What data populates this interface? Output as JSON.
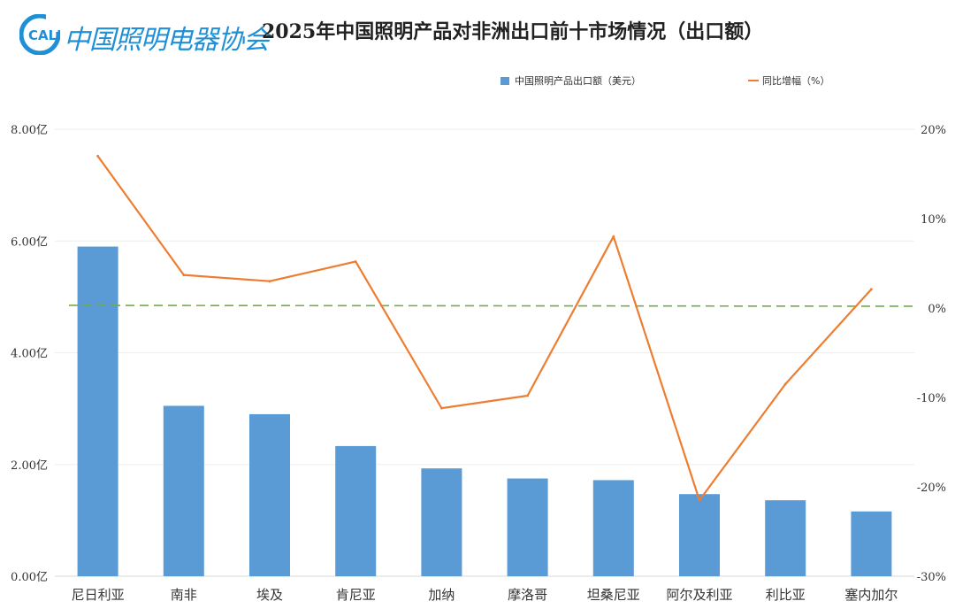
{
  "header": {
    "logo_mark": "CALI",
    "logo_text": "中国照明电器协会"
  },
  "colors": {
    "bar": "#5b9bd5",
    "line": "#ed7d31",
    "reference": "#70ad47",
    "grid": "#eeeeee",
    "logo": "#1f8fd6"
  },
  "chart_data": {
    "type": "bar",
    "title": "2025年中国照明产品对非洲出口前十市场情况（出口额）",
    "categories": [
      "尼日利亚",
      "南非",
      "埃及",
      "肯尼亚",
      "加纳",
      "摩洛哥",
      "坦桑尼亚",
      "阿尔及利亚",
      "利比亚",
      "塞内加尔"
    ],
    "series": [
      {
        "name": "中国照明产品出口额（美元）",
        "kind": "bar",
        "axis": "left",
        "values": [
          5.9,
          3.05,
          2.9,
          2.33,
          1.93,
          1.75,
          1.72,
          1.47,
          1.36,
          1.16
        ]
      },
      {
        "name": "同比增幅（%）",
        "kind": "line",
        "axis": "right",
        "values": [
          17,
          3.7,
          3,
          5.2,
          -11.2,
          -9.8,
          8,
          -21.5,
          -8.5,
          2.1
        ]
      }
    ],
    "ylim_left": [
      0,
      8
    ],
    "yticks_left": [
      "0.00亿",
      "2.00亿",
      "4.00亿",
      "6.00亿",
      "8.00亿"
    ],
    "ylim_right": [
      -30,
      20
    ],
    "yticks_right": [
      "-30%",
      "-20%",
      "-10%",
      "0%",
      "10%",
      "20%"
    ],
    "reference_line": {
      "axis": "right",
      "start": 0.3,
      "end": 0.2,
      "style": "dashed"
    },
    "grid": true,
    "legend_position": "top"
  }
}
